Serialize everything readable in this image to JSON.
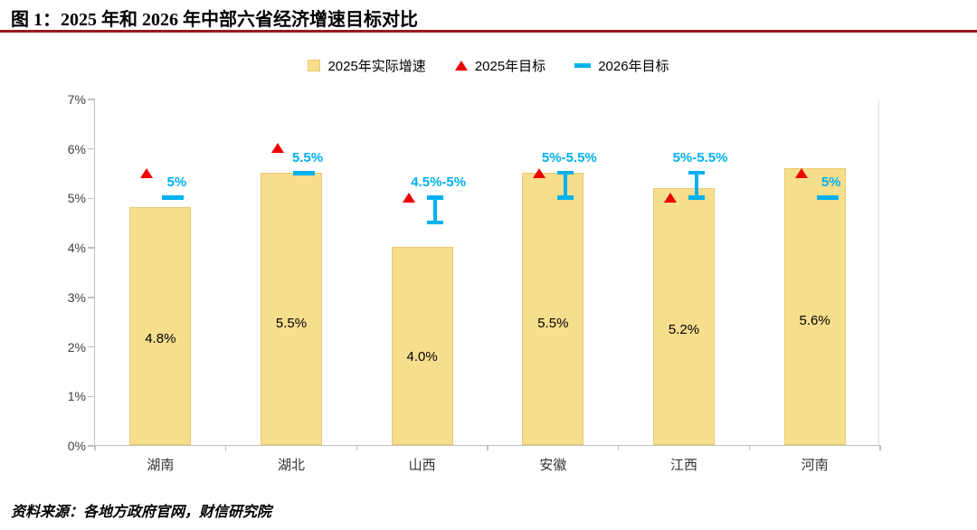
{
  "title": "图 1：2025 年和 2026 年中部六省经济增速目标对比",
  "footer": "资料来源：各地方政府官网，财信研究院",
  "legend": [
    {
      "label": "2025年实际增速",
      "marker": "bar-swatch"
    },
    {
      "label": "2025年目标",
      "marker": "triangle"
    },
    {
      "label": "2026年目标",
      "marker": "dash"
    }
  ],
  "colors": {
    "bar": "#f7de8d",
    "bar_border": "#e9c96f",
    "target2025": "#ee0000",
    "target2026": "#00b0f0",
    "axis": "#bfbfbf",
    "title_rule": "#9a1a1e"
  },
  "chart_data": {
    "type": "bar",
    "title": "图 1：2025 年和 2026 年中部六省经济增速目标对比",
    "categories": [
      "湖南",
      "湖北",
      "山西",
      "安徽",
      "江西",
      "河南"
    ],
    "series": [
      {
        "name": "2025年实际增速",
        "type": "bar",
        "values": [
          4.8,
          5.5,
          4.0,
          5.5,
          5.2,
          5.6
        ],
        "labels": [
          "4.8%",
          "5.5%",
          "4.0%",
          "5.5%",
          "5.2%",
          "5.6%"
        ]
      },
      {
        "name": "2025年目标",
        "type": "point",
        "values": [
          5.5,
          6.0,
          5.0,
          5.5,
          5.0,
          5.5
        ]
      },
      {
        "name": "2026年目标",
        "type": "range",
        "ranges": [
          [
            5,
            5
          ],
          [
            5.5,
            5.5
          ],
          [
            4.5,
            5
          ],
          [
            5,
            5.5
          ],
          [
            5,
            5.5
          ],
          [
            5,
            5
          ]
        ],
        "labels": [
          "5%",
          "5.5%",
          "4.5%-5%",
          "5%-5.5%",
          "5%-5.5%",
          "5%"
        ]
      }
    ],
    "ylim": [
      0,
      7
    ],
    "ytick_labels": [
      "0%",
      "1%",
      "2%",
      "3%",
      "4%",
      "5%",
      "6%",
      "7%"
    ],
    "grid": false,
    "legend_position": "top"
  }
}
